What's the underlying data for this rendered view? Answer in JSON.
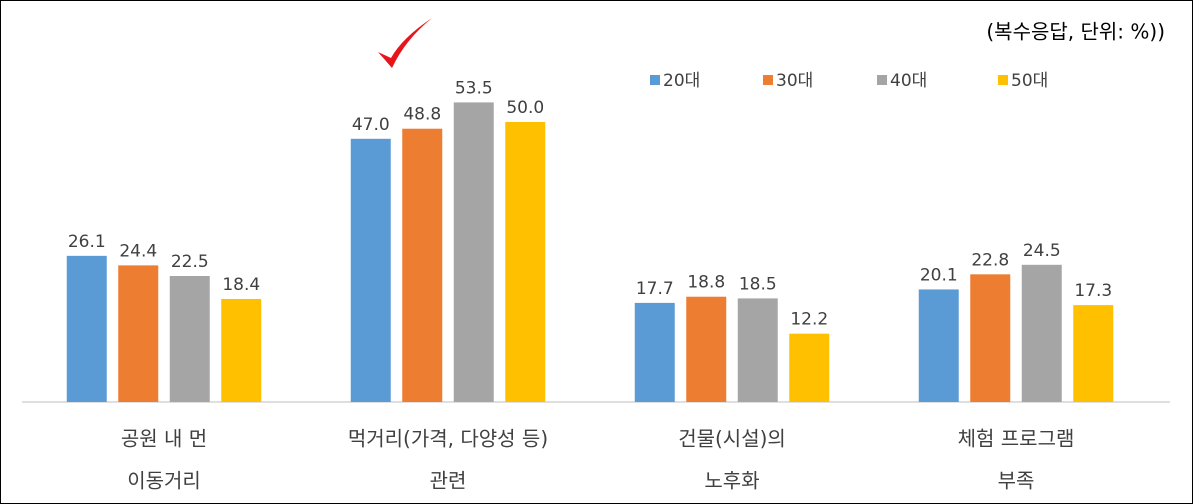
{
  "chart_data": {
    "type": "bar",
    "annotation": "(복수응답, 단위: %))",
    "categories": [
      [
        "공원 내 먼",
        "이동거리"
      ],
      [
        "먹거리(가격, 다양성 등)",
        "관련"
      ],
      [
        "건물(시설)의",
        "노후화"
      ],
      [
        "체험 프로그램",
        "부족"
      ]
    ],
    "series": [
      {
        "name": "20대",
        "color": "#5b9bd5",
        "values": [
          26.1,
          47.0,
          17.7,
          20.1
        ],
        "value_labels": [
          "26.1",
          "47.0",
          "17.7",
          "20.1"
        ]
      },
      {
        "name": "30대",
        "color": "#ed7d31",
        "values": [
          24.4,
          48.8,
          18.8,
          22.8
        ],
        "value_labels": [
          "24.4",
          "48.8",
          "18.8",
          "22.8"
        ]
      },
      {
        "name": "40대",
        "color": "#a5a5a5",
        "values": [
          22.5,
          53.5,
          18.5,
          24.5
        ],
        "value_labels": [
          "22.5",
          "53.5",
          "18.5",
          "24.5"
        ]
      },
      {
        "name": "50대",
        "color": "#ffc000",
        "values": [
          18.4,
          50.0,
          12.2,
          17.3
        ],
        "value_labels": [
          "18.4",
          "50.0",
          "12.2",
          "17.3"
        ]
      }
    ],
    "ylim": [
      0,
      60
    ],
    "legend": "top-right"
  }
}
